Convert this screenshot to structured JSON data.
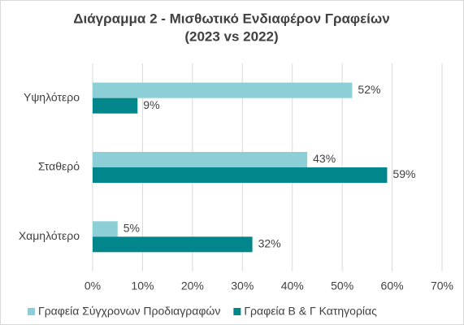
{
  "chart_data": {
    "type": "bar",
    "orientation": "horizontal",
    "title": "Διάγραμμα 2 - Μισθωτικό Ενδιαφέρον Γραφείων",
    "subtitle": "(2023 vs 2022)",
    "categories": [
      "Υψηλότερο",
      "Σταθερό",
      "Χαμηλότερο"
    ],
    "series": [
      {
        "name": "Γραφεία Σύγχρονων Προδιαγραφών",
        "color": "#8ccfd6",
        "values": [
          52,
          43,
          5
        ],
        "value_labels": [
          "52%",
          "43%",
          "5%"
        ]
      },
      {
        "name": "Γραφεία Β & Γ Κατηγορίας",
        "color": "#00868b",
        "values": [
          9,
          59,
          32
        ],
        "value_labels": [
          "9%",
          "59%",
          "32%"
        ]
      }
    ],
    "xlim": [
      0,
      70
    ],
    "xticks": [
      {
        "value": 0,
        "label": "0%"
      },
      {
        "value": 10,
        "label": "10%"
      },
      {
        "value": 20,
        "label": "20%"
      },
      {
        "value": 30,
        "label": "30%"
      },
      {
        "value": 40,
        "label": "40%"
      },
      {
        "value": 50,
        "label": "50%"
      },
      {
        "value": 60,
        "label": "60%"
      },
      {
        "value": 70,
        "label": "70%"
      }
    ],
    "grid": true,
    "legend": "bottom"
  }
}
